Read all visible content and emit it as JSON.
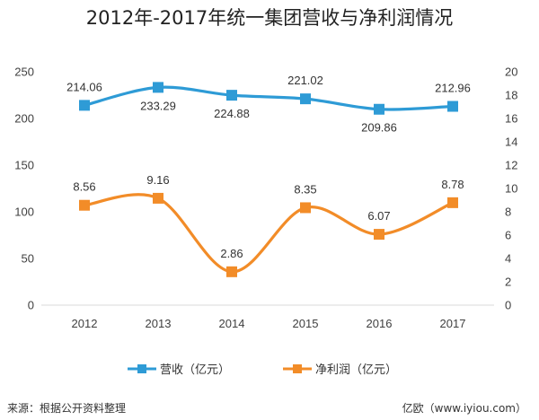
{
  "chart_data": {
    "type": "line",
    "title": "2012年-2017年统一集团营收与净利润情况",
    "categories": [
      "2012",
      "2013",
      "2014",
      "2015",
      "2016",
      "2017"
    ],
    "y_left": {
      "ylim": [
        0,
        250
      ],
      "ticks": [
        "0",
        "50",
        "100",
        "150",
        "200",
        "250"
      ]
    },
    "y_right": {
      "ylim": [
        0,
        20
      ],
      "ticks": [
        "0",
        "2",
        "4",
        "6",
        "8",
        "10",
        "12",
        "14",
        "16",
        "18",
        "20"
      ]
    },
    "series": [
      {
        "name": "营收（亿元）",
        "axis": "left",
        "color": "#2E9BD6",
        "values": [
          214.06,
          233.29,
          224.88,
          221.02,
          209.86,
          212.96
        ],
        "labels": [
          "214.06",
          "233.29",
          "224.88",
          "221.02",
          "209.86",
          "212.96"
        ],
        "label_positions": [
          "above",
          "below",
          "below",
          "above",
          "below",
          "above"
        ]
      },
      {
        "name": "净利润（亿元）",
        "axis": "right",
        "color": "#F28C28",
        "values": [
          8.56,
          9.16,
          2.86,
          8.35,
          6.07,
          8.78
        ],
        "labels": [
          "8.56",
          "9.16",
          "2.86",
          "8.35",
          "6.07",
          "8.78"
        ],
        "label_positions": [
          "above",
          "above",
          "above",
          "above",
          "above",
          "above"
        ]
      }
    ],
    "grid": false,
    "legend_position": "bottom"
  },
  "footer": {
    "source": "来源：根据公开资料整理",
    "brand": "亿欧（www.iyiou.com）"
  }
}
